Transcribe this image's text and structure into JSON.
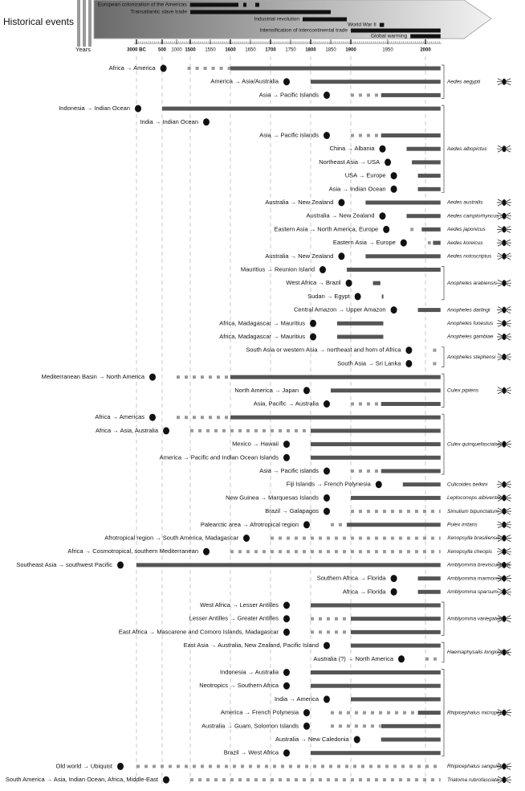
{
  "chart_data": {
    "type": "timeline",
    "header_title": "Historical events",
    "axis_label": "Years",
    "xticks": [
      {
        "value": -3000,
        "label": "3000 BC"
      },
      500,
      1000,
      1500,
      1550,
      1600,
      1650,
      1700,
      1750,
      1800,
      1850,
      1900,
      1950,
      2000
    ],
    "events": [
      {
        "label": "European colonization of the Americas",
        "periods": [
          [
            1492,
            1620
          ],
          [
            1632,
            1640
          ],
          [
            1662,
            1672
          ]
        ]
      },
      {
        "label": "Transatlantic slave trade",
        "periods": [
          [
            1500,
            1850
          ]
        ]
      },
      {
        "label": "Industrial revolution",
        "periods": [
          [
            1780,
            1890
          ]
        ]
      },
      {
        "label": "World War II",
        "periods": [
          [
            1939,
            1945
          ]
        ]
      },
      {
        "label": "Intensification of intercontinental trade",
        "periods": [
          [
            1900,
            2020
          ]
        ]
      },
      {
        "label": "Global warming",
        "periods": [
          [
            1980,
            2020
          ]
        ]
      }
    ],
    "groups": [
      {
        "species": "Aedes aegypti",
        "routes": [
          {
            "label": "Africa → America",
            "segments": [
              {
                "start": 1400,
                "end": 1600,
                "style": "dotted"
              },
              {
                "start": 1600,
                "end": 2020,
                "style": "solid"
              }
            ]
          },
          {
            "label": "America → Asia/Australia",
            "segments": [
              {
                "start": 1800,
                "end": 2020,
                "style": "solid"
              }
            ]
          },
          {
            "label": "Asia → Pacific Islands",
            "segments": [
              {
                "start": 1900,
                "end": 1940,
                "style": "dotted"
              },
              {
                "start": 1941,
                "end": 2020,
                "style": "solid"
              }
            ]
          }
        ]
      },
      {
        "species": "Aedes albopictus",
        "routes": [
          {
            "label": "Indonesia → Indian Ocean",
            "segments": [
              {
                "start": 500,
                "end": 2020,
                "style": "solid"
              }
            ]
          },
          {
            "label": "India → Indian Ocean",
            "segments": []
          },
          {
            "label": "Asia → Pacific islands",
            "segments": [
              {
                "start": 1900,
                "end": 1940,
                "style": "dotted"
              },
              {
                "start": 1941,
                "end": 2020,
                "style": "solid"
              }
            ]
          },
          {
            "label": "China → Albania",
            "segments": [
              {
                "start": 1975,
                "end": 2020,
                "style": "solid"
              }
            ]
          },
          {
            "label": "Northeast Asia → USA",
            "segments": [
              {
                "start": 1982,
                "end": 2020,
                "style": "solid"
              }
            ]
          },
          {
            "label": "USA → Europe",
            "segments": [
              {
                "start": 1990,
                "end": 2020,
                "style": "solid"
              }
            ]
          },
          {
            "label": "Asia → Indian Ocean",
            "segments": [
              {
                "start": 1990,
                "end": 2020,
                "style": "solid"
              }
            ]
          }
        ]
      },
      {
        "species": "Aedes australis",
        "routes": [
          {
            "label": "Australia → New Zealand",
            "segments": [
              {
                "start": 1920,
                "end": 2020,
                "style": "solid"
              }
            ]
          }
        ]
      },
      {
        "species": "Aedes camptorhyncus",
        "routes": [
          {
            "label": "Australia → New Zealand",
            "segments": [
              {
                "start": 1975,
                "end": 2020,
                "style": "solid"
              }
            ]
          }
        ]
      },
      {
        "species": "Aedes japonicus",
        "routes": [
          {
            "label": "Eastern Asia → North America, Europe",
            "segments": [
              {
                "start": 1980,
                "end": 1990,
                "style": "dotted"
              },
              {
                "start": 1995,
                "end": 2020,
                "style": "solid"
              }
            ]
          }
        ]
      },
      {
        "species": "Aedes koreicus",
        "routes": [
          {
            "label": "Eastern Asia → Europe",
            "segments": [
              {
                "start": 2003,
                "end": 2008,
                "style": "dotted"
              },
              {
                "start": 2010,
                "end": 2020,
                "style": "solid"
              }
            ]
          }
        ]
      },
      {
        "species": "Aedes notoscriptus",
        "routes": [
          {
            "label": "Australia → New Zealand",
            "segments": [
              {
                "start": 1920,
                "end": 2020,
                "style": "solid"
              }
            ]
          }
        ]
      },
      {
        "species": "Anopheles arabiensis",
        "routes": [
          {
            "label": "Mauritius → Reunion Island",
            "segments": [
              {
                "start": 1890,
                "end": 2020,
                "style": "solid"
              }
            ]
          },
          {
            "label": "West Africa → Brazil",
            "segments": [
              {
                "start": 1930,
                "end": 1940,
                "style": "solid"
              }
            ]
          },
          {
            "label": "Sudan → Egypt",
            "segments": [
              {
                "start": 1942,
                "end": 1944,
                "style": "solid"
              }
            ]
          }
        ]
      },
      {
        "species": "Anopheles darlingi",
        "routes": [
          {
            "label": "Central Amazon → Upper Amazon",
            "segments": [
              {
                "start": 1990,
                "end": 2020,
                "style": "solid"
              }
            ]
          }
        ]
      },
      {
        "species": "Anopheles funestus",
        "routes": [
          {
            "label": "Africa, Madagascar → Mauritius",
            "segments": [
              {
                "start": 1866,
                "end": 1944,
                "style": "solid"
              }
            ]
          }
        ]
      },
      {
        "species": "Anopheles gambiae",
        "routes": [
          {
            "label": "Africa, Madagascar → Mauritius",
            "segments": [
              {
                "start": 1866,
                "end": 1944,
                "style": "solid"
              }
            ]
          }
        ]
      },
      {
        "species": "Anopheles stephensi",
        "routes": [
          {
            "label": "South Asia or western Asia → northeast and horn of Africa",
            "segments": [
              {
                "start": 2010,
                "end": 2020,
                "style": "dotted"
              }
            ]
          },
          {
            "label": "South Asia → Sri Lanka",
            "segments": [
              {
                "start": 2010,
                "end": 2020,
                "style": "dotted"
              }
            ]
          }
        ]
      },
      {
        "species": "Culex pipiens",
        "routes": [
          {
            "label": "Mediterranean Basin → North America",
            "segments": [
              {
                "start": 1000,
                "end": 1600,
                "style": "dotted"
              },
              {
                "start": 1600,
                "end": 2020,
                "style": "solid"
              }
            ]
          },
          {
            "label": "North America → Japan",
            "segments": [
              {
                "start": 1850,
                "end": 2020,
                "style": "solid"
              }
            ]
          },
          {
            "label": "Asia, Pacific → Australia",
            "segments": [
              {
                "start": 1900,
                "end": 1940,
                "style": "dotted"
              },
              {
                "start": 1941,
                "end": 2020,
                "style": "solid"
              }
            ]
          }
        ]
      },
      {
        "species": "Culex quinquefasciatus",
        "routes": [
          {
            "label": "Africa → Americas",
            "segments": [
              {
                "start": 1000,
                "end": 1600,
                "style": "dotted"
              },
              {
                "start": 1600,
                "end": 2020,
                "style": "solid"
              }
            ]
          },
          {
            "label": "Africa → Asia, Australia",
            "segments": [
              {
                "start": 1500,
                "end": 1800,
                "style": "dotted"
              },
              {
                "start": 1800,
                "end": 2020,
                "style": "solid"
              }
            ]
          },
          {
            "label": "Mexico → Hawaii",
            "segments": [
              {
                "start": 1800,
                "end": 2020,
                "style": "solid"
              }
            ]
          },
          {
            "label": "America → Pacific and Indian Ocean Islands",
            "segments": [
              {
                "start": 1800,
                "end": 2020,
                "style": "solid"
              }
            ]
          },
          {
            "label": "Asia → Pacific islands",
            "segments": [
              {
                "start": 1900,
                "end": 1940,
                "style": "dotted"
              },
              {
                "start": 1941,
                "end": 2020,
                "style": "solid"
              }
            ]
          }
        ]
      },
      {
        "species": "Culicoides belkini",
        "routes": [
          {
            "label": "Fiji Islands → French Polynesia",
            "segments": [
              {
                "start": 1970,
                "end": 2020,
                "style": "solid"
              }
            ]
          }
        ]
      },
      {
        "species": "Leptoconops albiventris",
        "routes": [
          {
            "label": "New Guinea → Marquesas Islands",
            "segments": [
              {
                "start": 1900,
                "end": 2020,
                "style": "solid"
              }
            ]
          }
        ]
      },
      {
        "species": "Simulium bipunctatum",
        "routes": [
          {
            "label": "Brazil → Galapagos",
            "segments": [
              {
                "start": 1900,
                "end": 2020,
                "style": "dotted"
              }
            ]
          }
        ]
      },
      {
        "species": "Pulex irritans",
        "routes": [
          {
            "label": "Palearctic area → Afrotropical region",
            "segments": [
              {
                "start": 1850,
                "end": 1890,
                "style": "dotted"
              },
              {
                "start": 1890,
                "end": 2020,
                "style": "solid"
              }
            ]
          }
        ]
      },
      {
        "species": "Xenopsylla brasiliensis",
        "routes": [
          {
            "label": "Afrotropical region → South America, Madagascar",
            "segments": [
              {
                "start": 1700,
                "end": 2020,
                "style": "dotted"
              }
            ]
          }
        ]
      },
      {
        "species": "Xenopsylla cheopis",
        "routes": [
          {
            "label": "Africa → Cosmotropical, southern Mediterranean",
            "segments": [
              {
                "start": 1600,
                "end": 2020,
                "style": "dotted"
              }
            ]
          }
        ]
      },
      {
        "species": "Amblyomma breviscutatum",
        "routes": [
          {
            "label": "Southeast Asia → southwest Pacific",
            "segments": [
              {
                "start": -3000,
                "end": 2020,
                "style": "solid"
              }
            ]
          }
        ]
      },
      {
        "species": "Amblyomma marmoreum",
        "routes": [
          {
            "label": "Southern Africa → Florida",
            "segments": [
              {
                "start": 1990,
                "end": 2020,
                "style": "solid"
              }
            ]
          }
        ]
      },
      {
        "species": "Amblyomma sparsum",
        "routes": [
          {
            "label": "Africa → Florida",
            "segments": [
              {
                "start": 1990,
                "end": 2020,
                "style": "solid"
              }
            ]
          }
        ]
      },
      {
        "species": "Amblyomma variegatum",
        "routes": [
          {
            "label": "West Africa → Lesser Antilles",
            "segments": [
              {
                "start": 1800,
                "end": 2020,
                "style": "solid"
              }
            ]
          },
          {
            "label": "Lesser Antilles → Greater Antilles",
            "segments": [
              {
                "start": 1800,
                "end": 1900,
                "style": "dotted"
              },
              {
                "start": 1900,
                "end": 2020,
                "style": "solid"
              }
            ]
          },
          {
            "label": "East Africa → Mascarene and Comoro Islands, Madagascar",
            "segments": [
              {
                "start": 1800,
                "end": 1900,
                "style": "dotted"
              },
              {
                "start": 1900,
                "end": 2020,
                "style": "solid"
              }
            ]
          }
        ]
      },
      {
        "species": "Haemaphysalis longicornis",
        "routes": [
          {
            "label": "East Asia → Australia, New Zealand, Pacific Island",
            "segments": [
              {
                "start": 1900,
                "end": 2020,
                "style": "solid"
              }
            ]
          },
          {
            "label": "Australia (?) → North America",
            "segments": [
              {
                "start": 2000,
                "end": 2020,
                "style": "dotted"
              }
            ]
          }
        ]
      },
      {
        "species": "Rhipicephalus microplus",
        "routes": [
          {
            "label": "Indonesia → Australia",
            "segments": [
              {
                "start": 1800,
                "end": 2020,
                "style": "solid"
              }
            ]
          },
          {
            "label": "Neotropics → Southern Africa",
            "segments": [
              {
                "start": 1800,
                "end": 2020,
                "style": "solid"
              }
            ]
          },
          {
            "label": "India → America",
            "segments": [
              {
                "start": 1900,
                "end": 2020,
                "style": "solid"
              }
            ]
          },
          {
            "label": "America → French Polynesia",
            "segments": [
              {
                "start": 1850,
                "end": 1990,
                "style": "dotted"
              },
              {
                "start": 1990,
                "end": 2020,
                "style": "solid"
              }
            ]
          },
          {
            "label": "Australia → Guam, Solomon Islands",
            "segments": [
              {
                "start": 1850,
                "end": 1940,
                "style": "dotted"
              },
              {
                "start": 1941,
                "end": 2020,
                "style": "solid"
              }
            ]
          },
          {
            "label": "Australia → New Caledonia",
            "segments": [
              {
                "start": 1941,
                "end": 2020,
                "style": "solid"
              }
            ]
          },
          {
            "label": "Brazil → West Africa",
            "segments": [
              {
                "start": 1800,
                "end": 2020,
                "style": "solid"
              }
            ]
          }
        ]
      },
      {
        "species": "Rhipicephalus sanguineus",
        "routes": [
          {
            "label": "Old world → Ubiquist",
            "segments": [
              {
                "start": -3000,
                "end": 2020,
                "style": "dotted"
              }
            ]
          }
        ]
      },
      {
        "species": "Triatoma rubrofasciata",
        "routes": [
          {
            "label": "South America → Asia, Indian Ocean, Africa, Middle-East",
            "segments": [
              {
                "start": 1500,
                "end": 2020,
                "style": "dotted"
              }
            ]
          }
        ]
      }
    ]
  }
}
